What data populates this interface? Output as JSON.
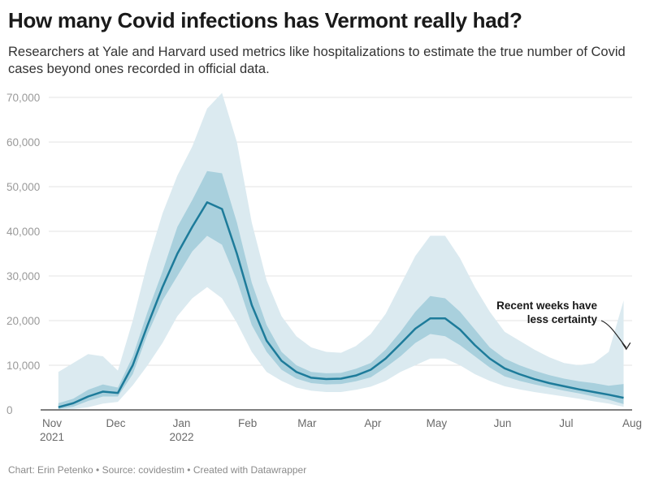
{
  "title": "How many Covid infections has Vermont really had?",
  "subtitle": "Researchers at Yale and Harvard used metrics like hospitalizations to estimate the true number of Covid cases beyond ones recorded in official data.",
  "footer": "Chart: Erin Petenko • Source: covidestim • Created with Datawrapper",
  "colors": {
    "median_line": "#1d7b9a",
    "inner_band": "#a9d0dd",
    "outer_band": "#dbeaf0",
    "grid": "#e3e3e3",
    "baseline": "#555555"
  },
  "chart_data": {
    "type": "area",
    "title": "How many Covid infections has Vermont really had?",
    "xlabel": "",
    "ylabel": "",
    "ylim": [
      0,
      70000
    ],
    "yticks": [
      0,
      10000,
      20000,
      30000,
      40000,
      50000,
      60000,
      70000
    ],
    "ytick_labels": [
      "0",
      "10,000",
      "20,000",
      "30,000",
      "40,000",
      "50,000",
      "60,000",
      "70,000"
    ],
    "xlim": [
      "2021-11-01",
      "2022-08-01"
    ],
    "xticks": [
      {
        "date": "2021-11-01",
        "label": "Nov",
        "label2": "2021"
      },
      {
        "date": "2021-12-01",
        "label": "Dec",
        "label2": ""
      },
      {
        "date": "2022-01-01",
        "label": "Jan",
        "label2": "2022"
      },
      {
        "date": "2022-02-01",
        "label": "Feb",
        "label2": ""
      },
      {
        "date": "2022-03-01",
        "label": "Mar",
        "label2": ""
      },
      {
        "date": "2022-04-01",
        "label": "Apr",
        "label2": ""
      },
      {
        "date": "2022-05-01",
        "label": "May",
        "label2": ""
      },
      {
        "date": "2022-06-01",
        "label": "Jun",
        "label2": ""
      },
      {
        "date": "2022-07-01",
        "label": "Jul",
        "label2": ""
      },
      {
        "date": "2022-08-01",
        "label": "Aug",
        "label2": ""
      }
    ],
    "grid": true,
    "legend": "none",
    "annotation": {
      "line1": "Recent weeks have",
      "line2": "less certainty",
      "target_date": "2022-07-30",
      "target_value": 12500
    },
    "x": [
      "2021-11-04",
      "2021-11-11",
      "2021-11-18",
      "2021-11-25",
      "2021-12-02",
      "2021-12-09",
      "2021-12-16",
      "2021-12-23",
      "2021-12-30",
      "2022-01-06",
      "2022-01-13",
      "2022-01-20",
      "2022-01-27",
      "2022-02-03",
      "2022-02-10",
      "2022-02-17",
      "2022-02-24",
      "2022-03-03",
      "2022-03-10",
      "2022-03-17",
      "2022-03-24",
      "2022-03-31",
      "2022-04-07",
      "2022-04-14",
      "2022-04-21",
      "2022-04-28",
      "2022-05-05",
      "2022-05-12",
      "2022-05-19",
      "2022-05-26",
      "2022-06-02",
      "2022-06-09",
      "2022-06-16",
      "2022-06-23",
      "2022-06-30",
      "2022-07-07",
      "2022-07-14",
      "2022-07-21",
      "2022-07-28"
    ],
    "series": [
      {
        "name": "Median estimate",
        "values": [
          600,
          1500,
          3000,
          4100,
          3800,
          10000,
          19000,
          27500,
          35000,
          41000,
          46500,
          45000,
          35000,
          23500,
          15500,
          11000,
          8500,
          7200,
          6900,
          7000,
          7700,
          9000,
          11500,
          14800,
          18200,
          20500,
          20500,
          18000,
          14500,
          11500,
          9300,
          8000,
          6900,
          6000,
          5300,
          4600,
          4000,
          3400,
          2700
        ]
      },
      {
        "name": "Inner interval low",
        "values": [
          200,
          700,
          2000,
          3000,
          3000,
          8000,
          17000,
          24500,
          30000,
          35500,
          39000,
          37000,
          29000,
          19000,
          13000,
          9000,
          7000,
          6000,
          5700,
          5800,
          6400,
          7300,
          9500,
          12000,
          15000,
          17000,
          16500,
          14500,
          12000,
          9500,
          7500,
          6500,
          5700,
          5000,
          4300,
          3700,
          3000,
          2300,
          1300
        ]
      },
      {
        "name": "Inner interval high",
        "values": [
          1500,
          2500,
          4500,
          5700,
          5000,
          12000,
          22000,
          31000,
          41000,
          47000,
          53500,
          53000,
          42000,
          28500,
          19000,
          13000,
          10000,
          8500,
          8200,
          8300,
          9200,
          10500,
          13500,
          17500,
          22000,
          25500,
          25000,
          22000,
          18000,
          14000,
          11500,
          10000,
          8800,
          7800,
          7000,
          6400,
          6000,
          5400,
          5800
        ]
      },
      {
        "name": "Outer interval low",
        "values": [
          0,
          200,
          600,
          1400,
          1800,
          5500,
          10000,
          15000,
          21000,
          25000,
          27500,
          25000,
          19500,
          13000,
          8500,
          6500,
          5000,
          4300,
          4000,
          4000,
          4500,
          5200,
          6500,
          8500,
          10000,
          11500,
          11500,
          10000,
          8000,
          6500,
          5300,
          4600,
          4000,
          3500,
          3000,
          2500,
          1900,
          1400,
          700
        ]
      },
      {
        "name": "Outer interval high",
        "values": [
          8500,
          10500,
          12500,
          12000,
          8800,
          20000,
          33000,
          44000,
          52500,
          59000,
          67500,
          71000,
          60000,
          42000,
          29000,
          21000,
          16500,
          14000,
          13000,
          12800,
          14300,
          17000,
          21500,
          28000,
          34500,
          39000,
          39000,
          34000,
          27500,
          22000,
          17500,
          15500,
          13500,
          11800,
          10500,
          10000,
          10500,
          13000,
          24500
        ]
      }
    ]
  }
}
